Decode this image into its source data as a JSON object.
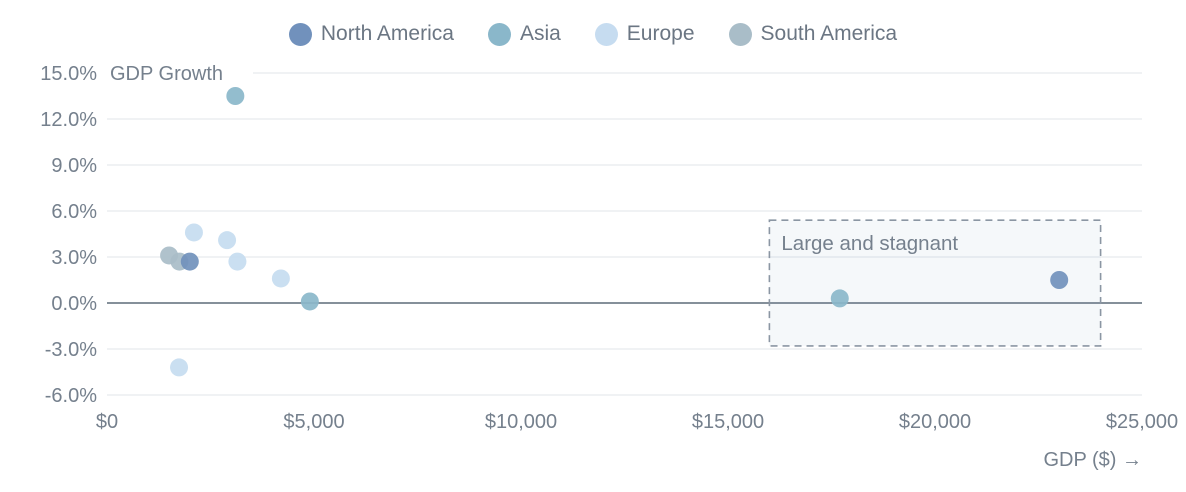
{
  "chart_data": {
    "type": "scatter",
    "title": "GDP Growth",
    "xlabel": "GDP ($) →",
    "ylabel": "GDP Growth",
    "xlim": [
      0,
      25000
    ],
    "ylim": [
      -6,
      15
    ],
    "grid": "horizontal",
    "legend_position": "top-center",
    "x_ticks": [
      {
        "value": 0,
        "label": "$0"
      },
      {
        "value": 5000,
        "label": "$5,000"
      },
      {
        "value": 10000,
        "label": "$10,000"
      },
      {
        "value": 15000,
        "label": "$15,000"
      },
      {
        "value": 20000,
        "label": "$20,000"
      },
      {
        "value": 25000,
        "label": "$25,000"
      }
    ],
    "y_ticks": [
      {
        "value": 15,
        "label": "15.0%"
      },
      {
        "value": 12,
        "label": "12.0%"
      },
      {
        "value": 9,
        "label": "9.0%"
      },
      {
        "value": 6,
        "label": "6.0%"
      },
      {
        "value": 3,
        "label": "3.0%"
      },
      {
        "value": 0,
        "label": "0.0%"
      },
      {
        "value": -3,
        "label": "-3.0%"
      },
      {
        "value": -6,
        "label": "-6.0%"
      }
    ],
    "series": [
      {
        "name": "North America",
        "color": "#7191bc",
        "points": [
          {
            "gdp": 2000,
            "growth": 2.7
          },
          {
            "gdp": 23000,
            "growth": 1.5
          }
        ]
      },
      {
        "name": "Asia",
        "color": "#8ab7ca",
        "points": [
          {
            "gdp": 3100,
            "growth": 13.5
          },
          {
            "gdp": 4900,
            "growth": 0.1
          },
          {
            "gdp": 17700,
            "growth": 0.3
          }
        ]
      },
      {
        "name": "Europe",
        "color": "#c6dcf0",
        "points": [
          {
            "gdp": 2100,
            "growth": 4.6
          },
          {
            "gdp": 2900,
            "growth": 4.1
          },
          {
            "gdp": 3150,
            "growth": 2.7
          },
          {
            "gdp": 4200,
            "growth": 1.6
          },
          {
            "gdp": 1740,
            "growth": -4.2
          }
        ]
      },
      {
        "name": "South America",
        "color": "#a9bdc8",
        "points": [
          {
            "gdp": 1500,
            "growth": 3.1
          },
          {
            "gdp": 1750,
            "growth": 2.7
          }
        ]
      }
    ],
    "annotation": {
      "label": "Large and stagnant",
      "x_range": [
        16000,
        24000
      ],
      "y_range": [
        -2.8,
        5.4
      ]
    }
  },
  "colors": {
    "grid_line": "#e7e9ed",
    "zero_line": "#5d6b78",
    "tick_text": "#75808d",
    "axis_title_text": "#75808d",
    "legend_text": "#6b7683",
    "annotation_text": "#75808d",
    "annotation_border": "#8b96a3",
    "annotation_fill": "rgba(133,160,197,0.08)",
    "background": "#ffffff"
  }
}
